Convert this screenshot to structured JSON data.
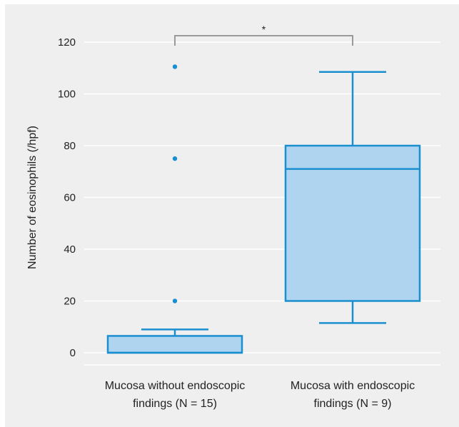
{
  "chart_data": {
    "type": "boxplot",
    "title": "",
    "ylabel": "Number of eosinophils (/hpf)",
    "xlabel": "",
    "ylim": [
      -8,
      128
    ],
    "yticks": [
      "0",
      "20",
      "40",
      "60",
      "80",
      "100",
      "120"
    ],
    "grid": "horizontal",
    "colors": {
      "box_fill": "#aed4f0",
      "box_stroke": "#1a8fd0",
      "grid": "#ffffff",
      "bracket": "#9a9a9a",
      "background": "#efefef"
    },
    "groups": [
      {
        "label_line1": "Mucosa without endoscopic",
        "label_line2": "findings (N = 15)",
        "whisker_low": 0,
        "q1": 0,
        "median": 0,
        "q3": 6.5,
        "whisker_high": 9,
        "outliers": [
          20,
          75,
          110.5
        ]
      },
      {
        "label_line1": "Mucosa with endoscopic",
        "label_line2": "findings (N = 9)",
        "whisker_low": 11.5,
        "q1": 20,
        "median": 71,
        "q3": 80,
        "whisker_high": 108.5,
        "outliers": []
      }
    ],
    "significance": {
      "label": "*",
      "between": [
        0,
        1
      ],
      "y": 120
    }
  }
}
